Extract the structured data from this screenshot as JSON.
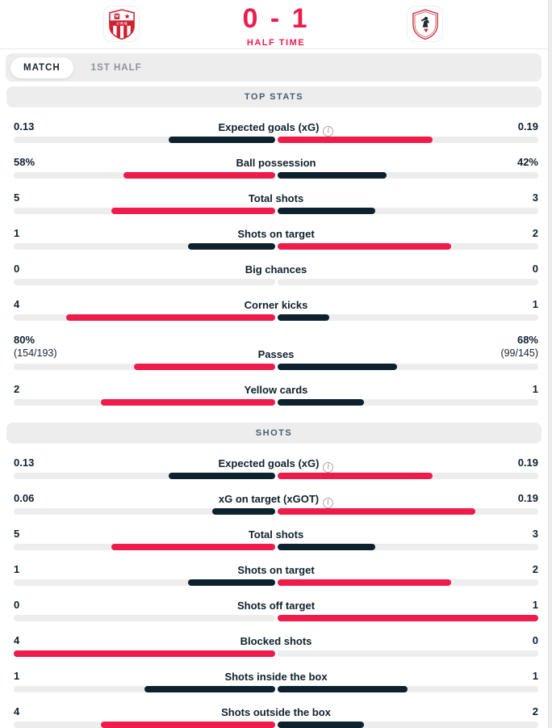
{
  "colors": {
    "accent_red": "#ee1b4b",
    "dark_navy": "#0d212e",
    "bar_track_gray": "#ededed",
    "section_header_gray": "#ededed",
    "crest_red": "#cf2030"
  },
  "icons": {
    "info": "i"
  },
  "header": {
    "score": "0 - 1",
    "status": "HALF TIME",
    "teams": {
      "home": {
        "crest": "red-white-striped-crest"
      },
      "away": {
        "crest": "zamalek-white-red-crest"
      }
    }
  },
  "tabs": [
    {
      "label": "MATCH",
      "active": true
    },
    {
      "label": "1ST HALF",
      "active": false
    }
  ],
  "sections": [
    {
      "title": "TOP STATS",
      "stats": [
        {
          "label": "Expected goals (xG)",
          "info": true,
          "home": "0.13",
          "away": "0.19",
          "home_val": 0.13,
          "away_val": 0.19
        },
        {
          "label": "Ball possession",
          "info": false,
          "home": "58%",
          "away": "42%",
          "home_val": 58,
          "away_val": 42
        },
        {
          "label": "Total shots",
          "info": false,
          "home": "5",
          "away": "3",
          "home_val": 5,
          "away_val": 3
        },
        {
          "label": "Shots on target",
          "info": false,
          "home": "1",
          "away": "2",
          "home_val": 1,
          "away_val": 2
        },
        {
          "label": "Big chances",
          "info": false,
          "home": "0",
          "away": "0",
          "home_val": 0,
          "away_val": 0
        },
        {
          "label": "Corner kicks",
          "info": false,
          "home": "4",
          "away": "1",
          "home_val": 4,
          "away_val": 1
        },
        {
          "label": "Passes",
          "info": false,
          "home": "80%",
          "home_sub": "(154/193)",
          "away": "68%",
          "away_sub": "(99/145)",
          "home_val": 80,
          "away_val": 68
        },
        {
          "label": "Yellow cards",
          "info": false,
          "home": "2",
          "away": "1",
          "home_val": 2,
          "away_val": 1
        }
      ]
    },
    {
      "title": "SHOTS",
      "stats": [
        {
          "label": "Expected goals (xG)",
          "info": true,
          "home": "0.13",
          "away": "0.19",
          "home_val": 0.13,
          "away_val": 0.19
        },
        {
          "label": "xG on target (xGOT)",
          "info": true,
          "home": "0.06",
          "away": "0.19",
          "home_val": 0.06,
          "away_val": 0.19
        },
        {
          "label": "Total shots",
          "info": false,
          "home": "5",
          "away": "3",
          "home_val": 5,
          "away_val": 3
        },
        {
          "label": "Shots on target",
          "info": false,
          "home": "1",
          "away": "2",
          "home_val": 1,
          "away_val": 2
        },
        {
          "label": "Shots off target",
          "info": false,
          "home": "0",
          "away": "1",
          "home_val": 0,
          "away_val": 1
        },
        {
          "label": "Blocked shots",
          "info": false,
          "home": "4",
          "away": "0",
          "home_val": 4,
          "away_val": 0
        },
        {
          "label": "Shots inside the box",
          "info": false,
          "home": "1",
          "away": "1",
          "home_val": 1,
          "away_val": 1
        },
        {
          "label": "Shots outside the box",
          "info": false,
          "home": "4",
          "away": "2",
          "home_val": 4,
          "away_val": 2
        }
      ]
    }
  ]
}
